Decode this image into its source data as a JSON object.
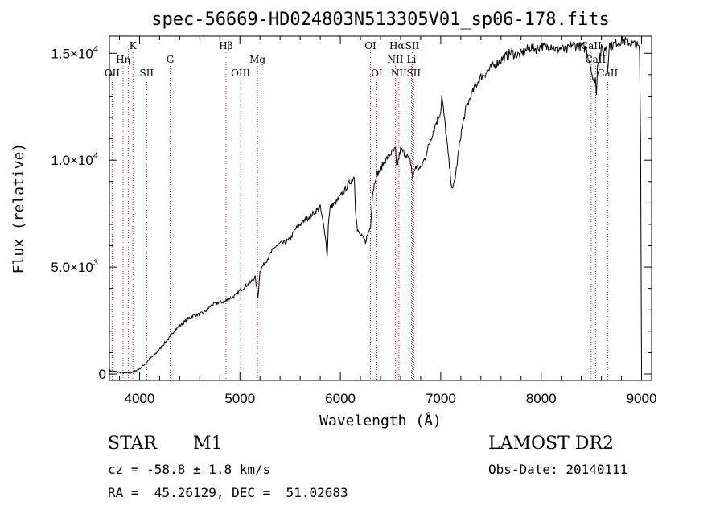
{
  "chart_data": {
    "type": "line",
    "title": "spec-56669-HD024803N513305V01_sp06-178.fits",
    "xlabel": "Wavelength (Å)",
    "ylabel": "Flux (relative)",
    "xlim": [
      3700,
      9100
    ],
    "ylim": [
      -300,
      15800
    ],
    "x_ticks": [
      {
        "value": 4000,
        "label": "4000"
      },
      {
        "value": 5000,
        "label": "5000"
      },
      {
        "value": 6000,
        "label": "6000"
      },
      {
        "value": 7000,
        "label": "7000"
      },
      {
        "value": 8000,
        "label": "8000"
      },
      {
        "value": 9000,
        "label": "9000"
      }
    ],
    "y_ticks": [
      {
        "value": 0,
        "mantissa": "0",
        "exp": ""
      },
      {
        "value": 5000,
        "mantissa": "5.0×10",
        "exp": "3"
      },
      {
        "value": 10000,
        "mantissa": "1.0×10",
        "exp": "4"
      },
      {
        "value": 15000,
        "mantissa": "1.5×10",
        "exp": "4"
      }
    ],
    "series": [
      {
        "name": "flux",
        "x": [
          3700,
          3750,
          3800,
          3850,
          3900,
          3950,
          4000,
          4050,
          4100,
          4150,
          4200,
          4250,
          4300,
          4350,
          4400,
          4450,
          4500,
          4550,
          4600,
          4650,
          4700,
          4750,
          4800,
          4850,
          4900,
          4950,
          5000,
          5050,
          5100,
          5150,
          5180,
          5200,
          5250,
          5300,
          5350,
          5400,
          5450,
          5500,
          5550,
          5600,
          5650,
          5700,
          5750,
          5800,
          5850,
          5870,
          5880,
          5900,
          5950,
          6000,
          6050,
          6100,
          6140,
          6150,
          6170,
          6200,
          6250,
          6300,
          6320,
          6350,
          6400,
          6450,
          6500,
          6550,
          6560,
          6600,
          6650,
          6700,
          6720,
          6750,
          6800,
          6850,
          6900,
          6950,
          7000,
          7010,
          7050,
          7080,
          7100,
          7120,
          7150,
          7200,
          7250,
          7300,
          7350,
          7400,
          7450,
          7500,
          7550,
          7600,
          7650,
          7700,
          7750,
          7800,
          7850,
          7900,
          7950,
          8000,
          8050,
          8100,
          8150,
          8200,
          8250,
          8300,
          8350,
          8400,
          8450,
          8500,
          8520,
          8540,
          8550,
          8560,
          8580,
          8600,
          8620,
          8650,
          8660,
          8680,
          8700,
          8750,
          8800,
          8850,
          8900,
          8950,
          8980,
          8990,
          9000
        ],
        "y": [
          150,
          120,
          80,
          40,
          50,
          120,
          250,
          450,
          700,
          900,
          1150,
          1450,
          1700,
          2050,
          2250,
          2450,
          2650,
          2750,
          2800,
          2900,
          3150,
          3300,
          3350,
          3400,
          3550,
          3650,
          3900,
          4100,
          4250,
          4550,
          3600,
          4850,
          5200,
          5600,
          5950,
          6100,
          6150,
          6300,
          6750,
          7000,
          7200,
          7400,
          7600,
          7800,
          6500,
          5500,
          7000,
          7800,
          8000,
          8300,
          8650,
          9000,
          9250,
          7800,
          6700,
          6500,
          6200,
          6900,
          8400,
          9200,
          9600,
          10000,
          10300,
          10500,
          9600,
          10500,
          10300,
          9900,
          9200,
          9700,
          9600,
          10200,
          11000,
          11700,
          12300,
          13000,
          11400,
          10000,
          9100,
          8600,
          9400,
          11200,
          12400,
          13000,
          13500,
          13900,
          14100,
          14300,
          14500,
          14700,
          14850,
          15050,
          14900,
          14950,
          15150,
          15300,
          15200,
          15350,
          15250,
          15400,
          15150,
          15250,
          15100,
          15400,
          15350,
          15300,
          15200,
          14300,
          13600,
          13900,
          13000,
          14500,
          14800,
          15200,
          15000,
          15400,
          14200,
          15400,
          15350,
          15500,
          15600,
          15550,
          15450,
          15400,
          15150,
          11000,
          0
        ]
      }
    ],
    "spectral_lines": [
      {
        "name": "OII",
        "wavelength": 3727,
        "label_row": 3
      },
      {
        "name": "Hη",
        "wavelength": 3836,
        "label_row": 2
      },
      {
        "name": "",
        "wavelength": 3889,
        "label_row": 1
      },
      {
        "name": "K",
        "wavelength": 3934,
        "label_row": 1
      },
      {
        "name": "SII",
        "wavelength": 4071,
        "label_row": 3
      },
      {
        "name": "G",
        "wavelength": 4305,
        "label_row": 2
      },
      {
        "name": "Hβ",
        "wavelength": 4861,
        "label_row": 1
      },
      {
        "name": "OIII",
        "wavelength": 5007,
        "label_row": 3
      },
      {
        "name": "Mg",
        "wavelength": 5175,
        "label_row": 2
      },
      {
        "name": "OI",
        "wavelength": 6300,
        "label_row": 1
      },
      {
        "name": "OI",
        "wavelength": 6364,
        "label_row": 3
      },
      {
        "name": "NII",
        "wavelength": 6548,
        "label_row": 2
      },
      {
        "name": "Hα",
        "wavelength": 6563,
        "label_row": 1
      },
      {
        "name": "NII",
        "wavelength": 6583,
        "label_row": 3
      },
      {
        "name": "SII",
        "wavelength": 6716,
        "label_row": 1
      },
      {
        "name": "Li",
        "wavelength": 6708,
        "label_row": 2
      },
      {
        "name": "SII",
        "wavelength": 6731,
        "label_row": 3
      },
      {
        "name": "CaII",
        "wavelength": 8498,
        "label_row": 1
      },
      {
        "name": "CaII",
        "wavelength": 8542,
        "label_row": 2
      },
      {
        "name": "CaII",
        "wavelength": 8662,
        "label_row": 3
      }
    ],
    "line_color": "#000000",
    "marker_color": "#cc2020"
  },
  "info": {
    "object_class": "STAR",
    "subclass": "M1",
    "survey": "LAMOST DR2",
    "redshift": "cz = -58.8 ± 1.8 km/s",
    "obs_date": "Obs-Date: 20140111",
    "coordinates": "RA =  45.26129, DEC =  51.02683"
  }
}
